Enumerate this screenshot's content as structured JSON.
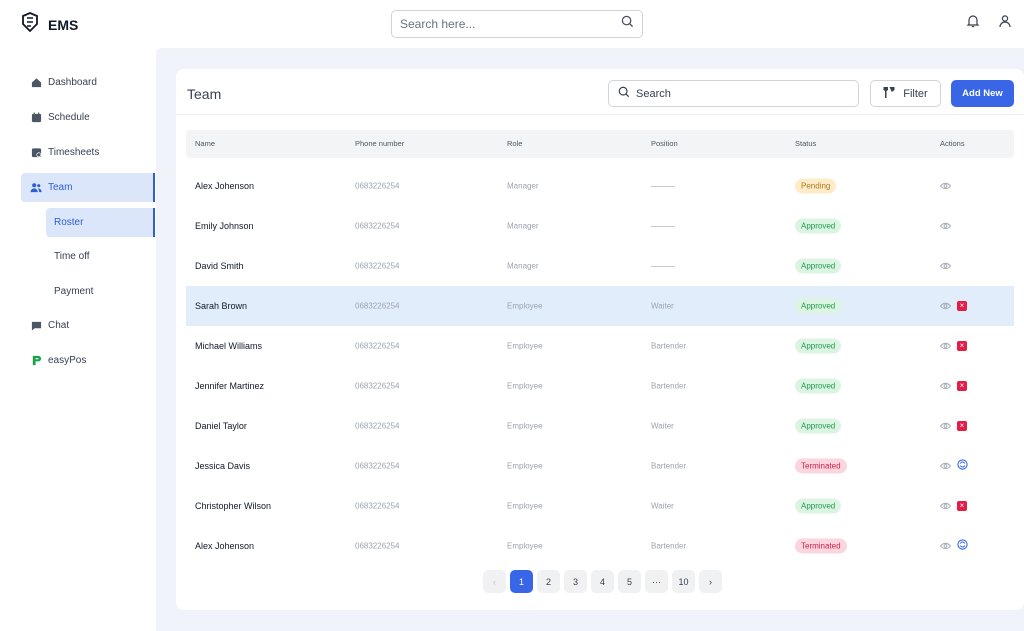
{
  "app": {
    "name": "EMS"
  },
  "topbar": {
    "search_placeholder": "Search here..."
  },
  "sidebar": {
    "items": [
      {
        "label": "Dashboard",
        "icon": "home-icon"
      },
      {
        "label": "Schedule",
        "icon": "calendar-icon"
      },
      {
        "label": "Timesheets",
        "icon": "timesheet-icon"
      },
      {
        "label": "Team",
        "icon": "users-icon"
      },
      {
        "label": "Chat",
        "icon": "chat-icon"
      },
      {
        "label": "easyPos",
        "icon": "easypos-logo-icon"
      }
    ],
    "team_sub": [
      {
        "label": "Roster"
      },
      {
        "label": "Time off"
      },
      {
        "label": "Payment"
      }
    ]
  },
  "team": {
    "title": "Team",
    "search_placeholder": "Search",
    "filter_label": "Filter",
    "add_label": "Add New",
    "columns": [
      "Name",
      "Phone number",
      "Role",
      "Position",
      "Status",
      "Actions"
    ],
    "rows": [
      {
        "name": "Alex Johenson",
        "phone": "0683226254",
        "role": "Manager",
        "position": "———",
        "status": "Pending"
      },
      {
        "name": "Emily Johnson",
        "phone": "0683226254",
        "role": "Manager",
        "position": "———",
        "status": "Approved"
      },
      {
        "name": "David Smith",
        "phone": "0683226254",
        "role": "Manager",
        "position": "———",
        "status": "Approved"
      },
      {
        "name": "Sarah Brown",
        "phone": "0683226254",
        "role": "Employee",
        "position": "Waiter",
        "status": "Approved"
      },
      {
        "name": "Michael Williams",
        "phone": "0683226254",
        "role": "Employee",
        "position": "Bartender",
        "status": "Approved"
      },
      {
        "name": "Jennifer Martinez",
        "phone": "0683226254",
        "role": "Employee",
        "position": "Bartender",
        "status": "Approved"
      },
      {
        "name": "Daniel Taylor",
        "phone": "0683226254",
        "role": "Employee",
        "position": "Waiter",
        "status": "Approved"
      },
      {
        "name": "Jessica Davis",
        "phone": "0683226254",
        "role": "Employee",
        "position": "Bartender",
        "status": "Terminated"
      },
      {
        "name": "Christopher Wilson",
        "phone": "0683226254",
        "role": "Employee",
        "position": "Waiter",
        "status": "Approved"
      },
      {
        "name": "Alex Johenson",
        "phone": "0683226254",
        "role": "Employee",
        "position": "Bartender",
        "status": "Terminated"
      }
    ]
  },
  "pagination": {
    "prev": "‹",
    "pages": [
      "1",
      "2",
      "3",
      "4",
      "5",
      "···",
      "10"
    ],
    "next": "›",
    "current": "1"
  },
  "colors": {
    "accent": "#3866e6",
    "approved": "#229a4b",
    "pending": "#b7791f",
    "terminated": "#c5264a"
  }
}
